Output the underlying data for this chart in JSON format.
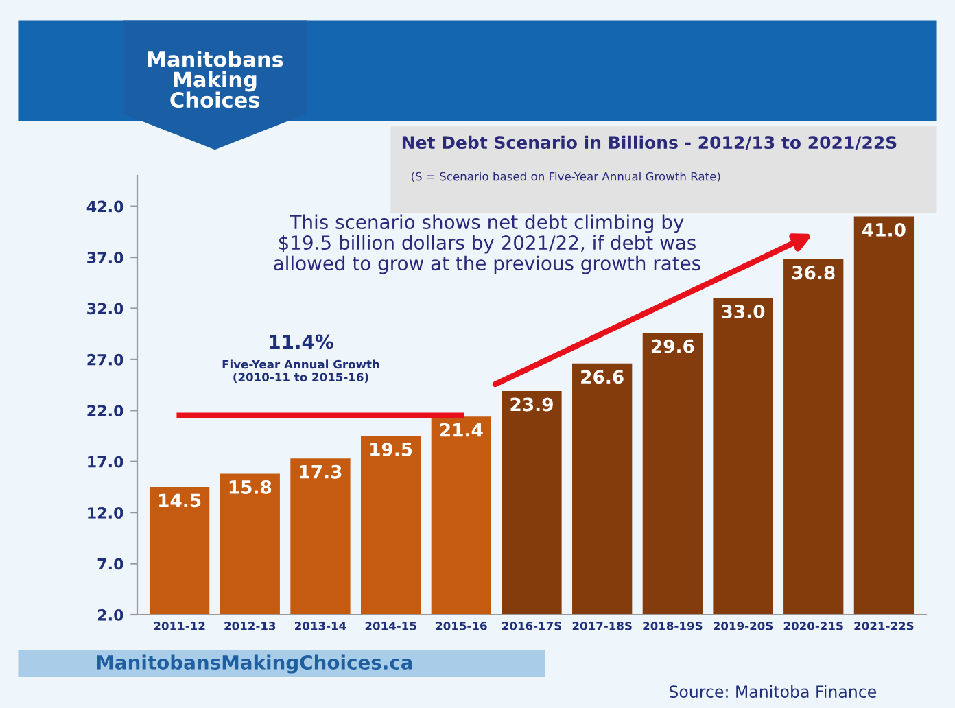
{
  "chart_data": {
    "type": "bar",
    "title": "Net Debt Scenario in Billions - 2012/13 to 2021/22S",
    "subtitle": "(S = Scenario based on Five-Year Annual Growth Rate)",
    "categories": [
      "2011-12",
      "2012-13",
      "2013-14",
      "2014-15",
      "2015-16",
      "2016-17S",
      "2017-18S",
      "2018-19S",
      "2019-20S",
      "2020-21S",
      "2021-22S"
    ],
    "series": [
      {
        "values": [
          14.5,
          15.8,
          17.3,
          19.5,
          21.4,
          23.9,
          26.6,
          29.6,
          33.0,
          36.8,
          41.0
        ],
        "value_labels": [
          "14.5",
          "15.8",
          "17.3",
          "19.5",
          "21.4",
          "23.9",
          "26.6",
          "29.6",
          "33.0",
          "36.8",
          "41.0"
        ],
        "colors": [
          "#c55a11",
          "#c55a11",
          "#c55a11",
          "#c55a11",
          "#c55a11",
          "#843c0c",
          "#843c0c",
          "#843c0c",
          "#843c0c",
          "#843c0c",
          "#843c0c"
        ]
      },
      {
        "type": "line",
        "color": "#e8101a",
        "values": [
          21.5,
          21.5,
          21.5,
          21.5,
          21.5,
          null,
          null,
          null,
          null,
          null,
          null
        ]
      }
    ],
    "ylim": [
      2,
      45
    ],
    "yticks": [
      {
        "value": 2,
        "label": "2.0"
      },
      {
        "value": 7,
        "label": "7.0"
      },
      {
        "value": 12,
        "label": "12.0"
      },
      {
        "value": 17,
        "label": "17.0"
      },
      {
        "value": 22,
        "label": "22.0"
      },
      {
        "value": 27,
        "label": "27.0"
      },
      {
        "value": 32,
        "label": "32.0"
      },
      {
        "value": 37,
        "label": "37.0"
      },
      {
        "value": 42,
        "label": "42.0"
      }
    ],
    "grid": false,
    "annotations": [
      "Manitobans\nMaking\nChoices",
      "This scenario shows net debt climbing by\n$19.5 billion dollars by 2021/22, if debt was\nallowed to grow at the previous growth rates",
      "11.4%",
      "Five-Year Annual Growth\n(2010-11 to 2015-16)",
      "ManitobansMakingChoices.ca",
      "Source: Manitoba Finance"
    ]
  }
}
